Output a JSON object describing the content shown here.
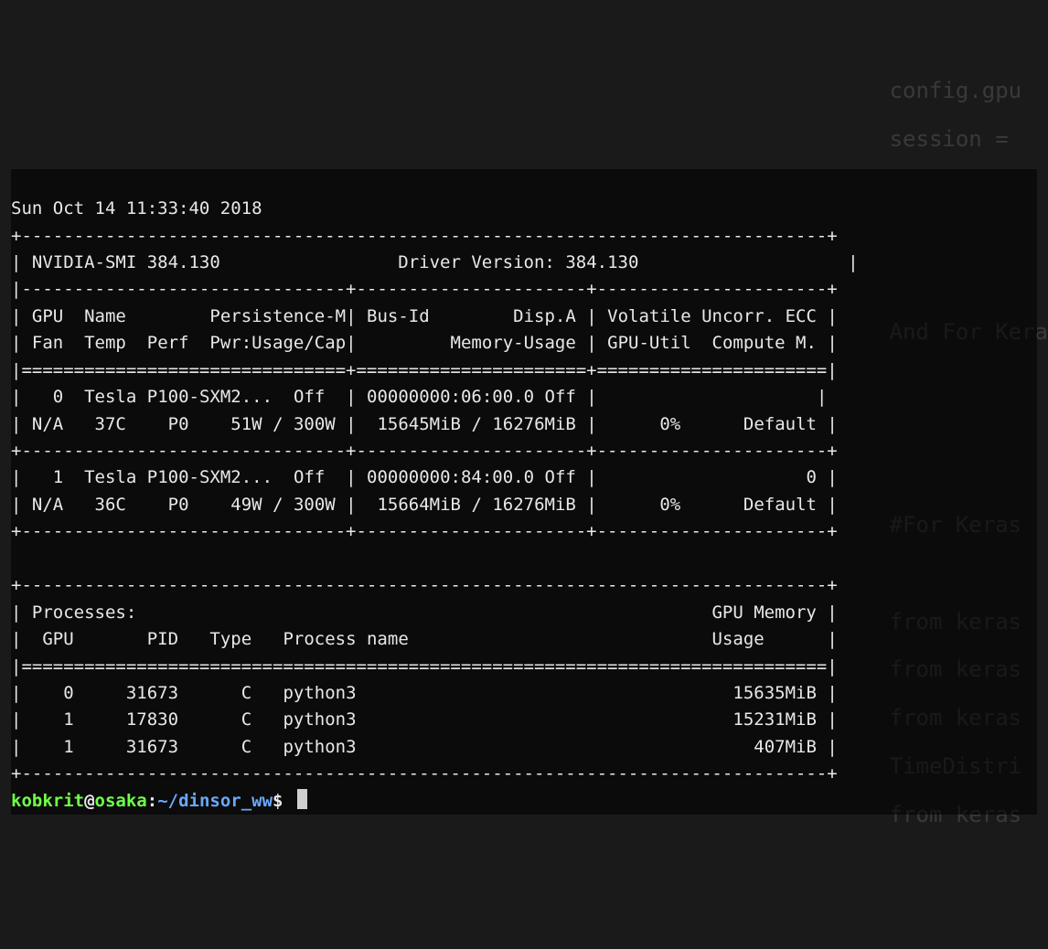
{
  "ghost": {
    "lines": [
      "config.gpu",
      "session =",
      "",
      "",
      "",
      "",
      "And For Kera",
      "",
      "",
      "",
      "",
      "#For Keras",
      "",
      "from keras",
      "from keras",
      "from keras",
      "TimeDistri",
      "from keras"
    ]
  },
  "timestamp": "Sun Oct 14 11:33:40 2018",
  "header": {
    "smi_label": "NVIDIA-SMI",
    "smi_version": "384.130",
    "driver_label": "Driver Version:",
    "driver_version": "384.130"
  },
  "col_headers": {
    "row1": {
      "gpu": "GPU",
      "name": "Name",
      "persist": "Persistence-M",
      "busid": "Bus-Id",
      "dispa": "Disp.A",
      "vol": "Volatile",
      "uncorr": "Uncorr. ECC"
    },
    "row2": {
      "fan": "Fan",
      "temp": "Temp",
      "perf": "Perf",
      "pwr": "Pwr:Usage/Cap",
      "memuse": "Memory-Usage",
      "gpuutil": "GPU-Util",
      "compute": "Compute M."
    }
  },
  "gpus": [
    {
      "idx": "0",
      "name": "Tesla",
      "model": "P100-SXM2...",
      "persist": "Off",
      "busid": "00000000:06:00.0",
      "dispa": "Off",
      "fan": "N/A",
      "temp": "37C",
      "perf": "P0",
      "pwr_use": "51W",
      "pwr_cap": "300W",
      "mem_use": "15645MiB",
      "mem_cap": "16276MiB",
      "util": "0%",
      "compute": "Default",
      "uncorr": ""
    },
    {
      "idx": "1",
      "name": "Tesla",
      "model": "P100-SXM2...",
      "persist": "Off",
      "busid": "00000000:84:00.0",
      "dispa": "Off",
      "fan": "N/A",
      "temp": "36C",
      "perf": "P0",
      "pwr_use": "49W",
      "pwr_cap": "300W",
      "mem_use": "15664MiB",
      "mem_cap": "16276MiB",
      "util": "0%",
      "compute": "Default",
      "uncorr": "0"
    }
  ],
  "proc_header": {
    "title": "Processes:",
    "gpumem": "GPU Memory",
    "gpu": "GPU",
    "pid": "PID",
    "type": "Type",
    "procname": "Process name",
    "usage": "Usage"
  },
  "processes": [
    {
      "gpu": "0",
      "pid": "31673",
      "type": "C",
      "name": "python3",
      "mem": "15635MiB"
    },
    {
      "gpu": "1",
      "pid": "17830",
      "type": "C",
      "name": "python3",
      "mem": "15231MiB"
    },
    {
      "gpu": "1",
      "pid": "31673",
      "type": "C",
      "name": "python3",
      "mem": "407MiB"
    }
  ],
  "prompt": {
    "user": "kobkrit",
    "host": "osaka",
    "path": "~/dinsor_ww",
    "dollar": "$"
  },
  "borders": {
    "top": "+-----------------------------------------------------------------------------+",
    "sep3": "|-------------------------------+----------------------+----------------------+",
    "eq3": "|===============================+======================+======================|",
    "row3": "+-------------------------------+----------------------+----------------------+",
    "eq1": "|=============================================================================|",
    "bot": "+-----------------------------------------------------------------------------+"
  }
}
